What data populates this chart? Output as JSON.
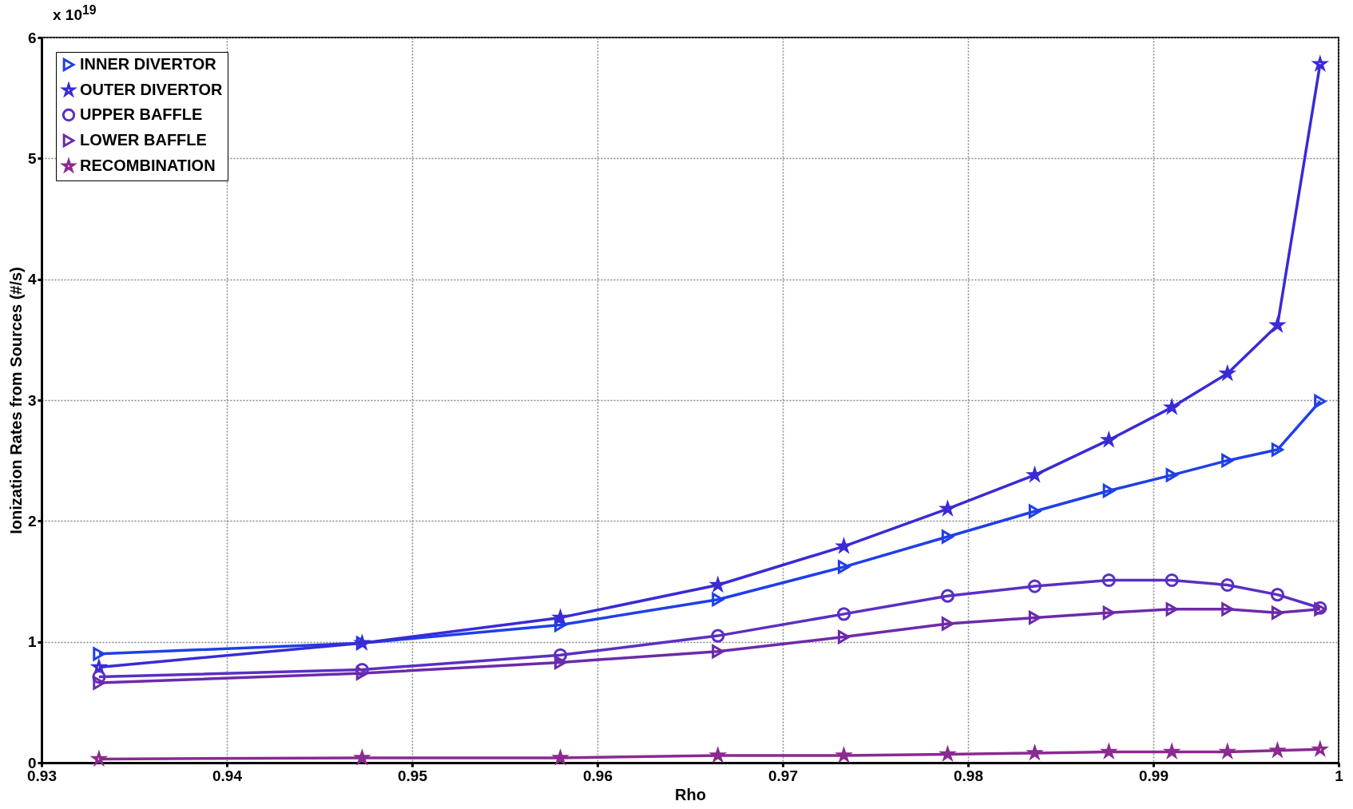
{
  "chart_data": {
    "type": "line",
    "xlabel": "Rho",
    "ylabel": "Ionization Rates from Sources (#/s)",
    "annotations": [
      "x 10$^{19}$"
    ],
    "x": [
      0.9331,
      0.9473,
      0.958,
      0.9665,
      0.9733,
      0.9789,
      0.9836,
      0.9876,
      0.991,
      0.994,
      0.9967,
      0.999
    ],
    "series": [
      {
        "name": "INNER DIVERTOR",
        "color": "#1f3fe8",
        "marker": "triangle",
        "values": [
          0.9,
          0.99,
          1.14,
          1.35,
          1.62,
          1.87,
          2.08,
          2.25,
          2.38,
          2.5,
          2.59,
          2.99
        ]
      },
      {
        "name": "OUTER DIVERTOR",
        "color": "#3a2ad6",
        "marker": "star",
        "values": [
          0.79,
          0.99,
          1.2,
          1.47,
          1.79,
          2.1,
          2.38,
          2.67,
          2.94,
          3.22,
          3.62,
          5.78
        ]
      },
      {
        "name": "UPPER BAFFLE",
        "color": "#5a2fc4",
        "marker": "circle",
        "values": [
          0.71,
          0.77,
          0.89,
          1.05,
          1.23,
          1.38,
          1.46,
          1.51,
          1.51,
          1.47,
          1.39,
          1.28
        ]
      },
      {
        "name": "LOWER BAFFLE",
        "color": "#6c2aaa",
        "marker": "triangle",
        "values": [
          0.66,
          0.74,
          0.83,
          0.92,
          1.04,
          1.15,
          1.2,
          1.24,
          1.27,
          1.27,
          1.24,
          1.27
        ]
      },
      {
        "name": "RECOMBINATION",
        "color": "#8a2a90",
        "marker": "star",
        "values": [
          0.03,
          0.04,
          0.04,
          0.06,
          0.06,
          0.07,
          0.08,
          0.09,
          0.09,
          0.09,
          0.1,
          0.11
        ]
      }
    ],
    "xlim": [
      0.93,
      1
    ],
    "xticks": [
      0.93,
      0.94,
      0.95,
      0.96,
      0.97,
      0.98,
      0.99,
      1
    ],
    "ylim": [
      0,
      6
    ],
    "yticks": [
      0,
      1,
      2,
      3,
      4,
      5,
      6
    ],
    "grid": true,
    "legend": "top left"
  }
}
